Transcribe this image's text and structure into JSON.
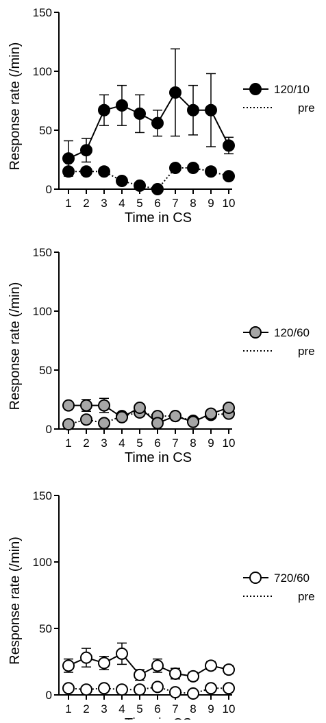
{
  "figure": {
    "panel_count": 3
  },
  "chart_data": [
    {
      "type": "line",
      "xlabel": "Time in CS",
      "ylabel": "Response rate (/min)",
      "x": [
        1,
        2,
        3,
        4,
        5,
        6,
        7,
        8,
        9,
        10
      ],
      "xticks": [
        "1",
        "2",
        "3",
        "4",
        "5",
        "6",
        "7",
        "8",
        "9",
        "10"
      ],
      "ylim": [
        0,
        150
      ],
      "yticks": [
        "0",
        "50",
        "100",
        "150"
      ],
      "legend_position": "right",
      "series": [
        {
          "name": "120/10",
          "marker": "filled-black",
          "line": "solid",
          "values": [
            26,
            33,
            67,
            71,
            64,
            56,
            82,
            67,
            67,
            37
          ],
          "errors": [
            15,
            10,
            13,
            17,
            16,
            11,
            37,
            21,
            31,
            7
          ]
        },
        {
          "name": "pre",
          "marker": "filled-black",
          "line": "dotted",
          "values": [
            15,
            15,
            15,
            7,
            3,
            0,
            18,
            18,
            15,
            11
          ],
          "errors": [
            3,
            2,
            2,
            2,
            2,
            1,
            3,
            2,
            2,
            2
          ]
        }
      ]
    },
    {
      "type": "line",
      "xlabel": "Time in CS",
      "ylabel": "Response rate (/min)",
      "x": [
        1,
        2,
        3,
        4,
        5,
        6,
        7,
        8,
        9,
        10
      ],
      "xticks": [
        "1",
        "2",
        "3",
        "4",
        "5",
        "6",
        "7",
        "8",
        "9",
        "10"
      ],
      "ylim": [
        0,
        150
      ],
      "yticks": [
        "0",
        "50",
        "100",
        "150"
      ],
      "legend_position": "right",
      "series": [
        {
          "name": "120/60",
          "marker": "filled-gray",
          "line": "solid",
          "values": [
            20,
            20,
            20,
            10,
            18,
            5,
            11,
            6,
            13,
            18
          ],
          "errors": [
            3,
            5,
            6,
            2,
            3,
            3,
            2,
            2,
            3,
            3
          ]
        },
        {
          "name": "pre",
          "marker": "filled-gray",
          "line": "dotted",
          "values": [
            4,
            8,
            5,
            11,
            14,
            11,
            11,
            7,
            12,
            13
          ],
          "errors": [
            2,
            3,
            2,
            2,
            3,
            2,
            2,
            2,
            2,
            3
          ]
        }
      ]
    },
    {
      "type": "line",
      "xlabel": "Time in CS",
      "ylabel": "Response rate (/min)",
      "x": [
        1,
        2,
        3,
        4,
        5,
        6,
        7,
        8,
        9,
        10
      ],
      "xticks": [
        "1",
        "2",
        "3",
        "4",
        "5",
        "6",
        "7",
        "8",
        "9",
        "10"
      ],
      "ylim": [
        0,
        150
      ],
      "yticks": [
        "0",
        "50",
        "100",
        "150"
      ],
      "legend_position": "right",
      "series": [
        {
          "name": "720/60",
          "marker": "open",
          "line": "solid",
          "values": [
            22,
            28,
            24,
            31,
            15,
            22,
            16,
            14,
            22,
            19
          ],
          "errors": [
            5,
            7,
            5,
            8,
            4,
            5,
            4,
            3,
            3,
            3
          ]
        },
        {
          "name": "pre",
          "marker": "open",
          "line": "dotted",
          "values": [
            5,
            4,
            5,
            4,
            4,
            6,
            2,
            1,
            5,
            5
          ],
          "errors": [
            2,
            1,
            1,
            1,
            2,
            2,
            1,
            1,
            1,
            1
          ]
        }
      ]
    }
  ]
}
